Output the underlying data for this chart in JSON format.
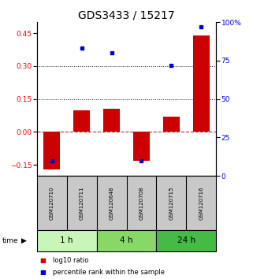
{
  "title": "GDS3433 / 15217",
  "samples": [
    "GSM120710",
    "GSM120711",
    "GSM120648",
    "GSM120708",
    "GSM120715",
    "GSM120716"
  ],
  "log10_ratio": [
    -0.17,
    0.1,
    0.105,
    -0.13,
    0.07,
    0.44
  ],
  "percentile_rank": [
    10,
    83,
    80,
    10,
    72,
    97
  ],
  "groups": [
    {
      "label": "1 h",
      "color": "#c8f5b8",
      "indices": [
        0,
        1
      ]
    },
    {
      "label": "4 h",
      "color": "#88d868",
      "indices": [
        2,
        3
      ]
    },
    {
      "label": "24 h",
      "color": "#44bb44",
      "indices": [
        4,
        5
      ]
    }
  ],
  "bar_color": "#cc0000",
  "dot_color": "#0000cc",
  "ylim_left": [
    -0.2,
    0.5
  ],
  "ylim_right": [
    0,
    100
  ],
  "yticks_left": [
    -0.15,
    0.0,
    0.15,
    0.3,
    0.45
  ],
  "yticks_right": [
    0,
    25,
    50,
    75,
    100
  ],
  "hlines": [
    0.15,
    0.3
  ],
  "zero_line": 0.0,
  "bar_width": 0.55,
  "legend_labels": [
    "log10 ratio",
    "percentile rank within the sample"
  ],
  "legend_colors": [
    "#cc0000",
    "#0000cc"
  ],
  "bg_color_plot": "#ffffff",
  "bg_color_sample": "#c8c8c8",
  "title_fontsize": 10,
  "tick_fontsize": 6.5,
  "sample_fontsize": 5.0,
  "group_fontsize": 7.5,
  "legend_fontsize": 6.0
}
